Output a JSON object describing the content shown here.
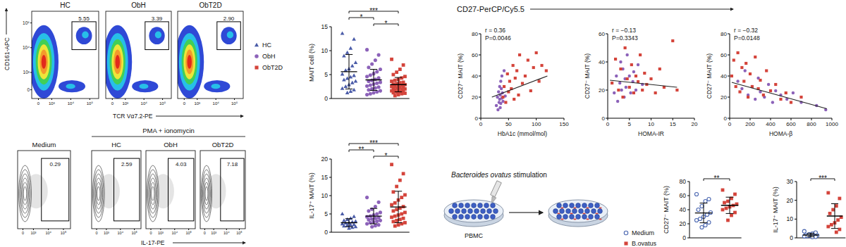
{
  "flow_mait": {
    "y_label": "CD161-APC",
    "x_label": "TCR Vα7.2-PE",
    "ticks": [
      0,
      {
        "value": 1000,
        "label": "10³"
      },
      {
        "value": 10000,
        "label": "10⁴"
      },
      {
        "value": 100000,
        "label": "10⁵"
      }
    ],
    "panels": [
      {
        "title": "HC",
        "gate": "5.55"
      },
      {
        "title": "ObH",
        "gate": "3.39"
      },
      {
        "title": "ObT2D",
        "gate": "2.90"
      }
    ]
  },
  "flow_il17": {
    "stim_label": "PMA + ionomycin",
    "x_label": "IL-17-PE",
    "ticks": [
      0,
      {
        "value": 1000,
        "label": "10³"
      },
      {
        "value": 10000,
        "label": "10⁴"
      },
      {
        "value": 100000,
        "label": "10⁵"
      }
    ],
    "panels": [
      {
        "title": "Medium",
        "gate": "0.29"
      },
      {
        "title": "HC",
        "gate": "2.59"
      },
      {
        "title": "ObH",
        "gate": "4.03"
      },
      {
        "title": "ObT2D",
        "gate": "7.18"
      }
    ]
  },
  "cd27_header": "CD27-PerCP/Cy5.5",
  "schematic": {
    "title_italic": "Bacteroides ovatus",
    "title_rest": "stimulation",
    "cell_label": "PBMC"
  },
  "chart_data": [
    {
      "type": "strip",
      "y_label": "MAIT cell (%)",
      "ylim": [
        0,
        15
      ],
      "yticks": [
        0,
        5,
        10,
        15
      ],
      "legend": "left",
      "series": [
        {
          "name": "HC",
          "color": "#4a5ba8",
          "marker": "triangle",
          "values": [
            13.6,
            12.4,
            10.5,
            9.6,
            8.9,
            7.5,
            6.8,
            6.2,
            5.9,
            5.1,
            4.8,
            4.5,
            4.2,
            3.9,
            3.6,
            3.3,
            2.9,
            2.5,
            2.1,
            1.8,
            1.5,
            1.2
          ],
          "mean": 5.6,
          "sd": 3.6
        },
        {
          "name": "ObH",
          "color": "#8c62b9",
          "marker": "circle",
          "values": [
            10.2,
            9.1,
            8.0,
            7.2,
            6.5,
            6.1,
            5.6,
            5.2,
            4.9,
            4.6,
            4.3,
            4.0,
            3.8,
            3.6,
            3.4,
            3.2,
            3.0,
            2.8,
            2.6,
            2.4,
            2.2,
            2.0,
            1.8,
            1.6,
            1.4,
            1.2,
            1.0,
            0.8
          ],
          "mean": 3.9,
          "sd": 2.2
        },
        {
          "name": "ObT2D",
          "color": "#d4443b",
          "marker": "square",
          "values": [
            8.2,
            7.0,
            6.1,
            5.5,
            5.0,
            4.6,
            4.3,
            4.0,
            3.8,
            3.6,
            3.4,
            3.3,
            3.1,
            3.0,
            2.9,
            2.8,
            2.7,
            2.6,
            2.5,
            2.4,
            2.3,
            2.2,
            2.1,
            2.0,
            1.9,
            1.8,
            1.7,
            1.6,
            1.5,
            1.4,
            1.3,
            1.2,
            1.1,
            1.0,
            0.8,
            0.6
          ],
          "mean": 2.9,
          "sd": 1.5
        }
      ],
      "significance": [
        {
          "between": [
            0,
            2
          ],
          "label": "***"
        },
        {
          "between": [
            0,
            1
          ],
          "label": "*"
        },
        {
          "between": [
            1,
            2
          ],
          "label": "*"
        }
      ]
    },
    {
      "type": "strip",
      "y_label": "IL-17⁺ MAIT (%)",
      "ylim": [
        0,
        20
      ],
      "yticks": [
        0,
        5,
        10,
        15,
        20
      ],
      "series": [
        {
          "color": "#4a5ba8",
          "marker": "triangle",
          "values": [
            5.0,
            4.3,
            3.8,
            3.5,
            3.2,
            3.0,
            2.8,
            2.6,
            2.5,
            2.3,
            2.1,
            2.0,
            1.9,
            1.7,
            1.5,
            1.3,
            1.1
          ],
          "mean": 2.6,
          "sd": 1.1
        },
        {
          "color": "#8c62b9",
          "marker": "circle",
          "values": [
            9.5,
            8.2,
            7.0,
            6.3,
            5.8,
            5.4,
            5.0,
            4.7,
            4.4,
            4.2,
            4.0,
            3.8,
            3.6,
            3.4,
            3.2,
            3.0,
            2.8,
            2.6,
            2.3,
            2.0,
            1.8,
            1.5
          ],
          "mean": 4.4,
          "sd": 2.1
        },
        {
          "color": "#d4443b",
          "marker": "square",
          "values": [
            18.5,
            16.0,
            14.2,
            12.5,
            11.0,
            10.2,
            9.5,
            8.8,
            8.0,
            7.5,
            7.0,
            6.6,
            6.2,
            5.8,
            5.4,
            5.0,
            4.7,
            4.4,
            4.1,
            3.8,
            3.5,
            3.2,
            2.9,
            2.6,
            2.3,
            2.0,
            1.7
          ],
          "mean": 6.9,
          "sd": 4.3
        }
      ],
      "significance": [
        {
          "between": [
            0,
            2
          ],
          "label": "***"
        },
        {
          "between": [
            0,
            1
          ],
          "label": "**"
        },
        {
          "between": [
            1,
            2
          ],
          "label": "*"
        }
      ]
    },
    {
      "type": "scatter",
      "x_label": "HbA1c (mmol/mol)",
      "y_label": "CD27⁻ MAIT (%)",
      "xlim": [
        0,
        150
      ],
      "xticks": [
        0,
        50,
        100,
        150
      ],
      "ylim": [
        0,
        80
      ],
      "yticks": [
        0,
        20,
        40,
        60,
        80
      ],
      "annotations": [
        "r = 0.36",
        "P=0.0046"
      ],
      "series": [
        {
          "color": "#8c62b9",
          "marker": "circle",
          "x": [
            28,
            30,
            31,
            32,
            33,
            34,
            34,
            35,
            35,
            36,
            36,
            37,
            38,
            38,
            39,
            40,
            42,
            44
          ],
          "values": [
            12,
            20,
            8,
            25,
            15,
            30,
            18,
            10,
            22,
            35,
            14,
            28,
            19,
            40,
            24,
            16,
            45,
            21
          ]
        },
        {
          "color": "#d4443b",
          "marker": "square",
          "x": [
            40,
            42,
            45,
            48,
            50,
            52,
            55,
            58,
            60,
            62,
            65,
            68,
            70,
            75,
            80,
            85,
            90,
            95,
            100,
            105,
            110,
            118
          ],
          "values": [
            20,
            30,
            15,
            42,
            25,
            35,
            28,
            50,
            18,
            38,
            45,
            22,
            60,
            33,
            40,
            55,
            26,
            48,
            62,
            35,
            50,
            45
          ]
        }
      ],
      "fit": {
        "x": [
          20,
          120
        ],
        "values": [
          20,
          40
        ]
      }
    },
    {
      "type": "scatter",
      "x_label": "HOMA-IR",
      "y_label": "CD27⁻ MAIT (%)",
      "xlim": [
        0,
        20
      ],
      "xticks": [
        0,
        5,
        10,
        15,
        20
      ],
      "ylim": [
        0,
        60
      ],
      "yticks": [
        0,
        20,
        40,
        60
      ],
      "annotations": [
        "r = −0.13",
        "P=0.3343"
      ],
      "series": [
        {
          "color": "#8c62b9",
          "marker": "circle",
          "x": [
            1.5,
            2,
            2.3,
            2.8,
            3,
            3.2,
            3.5,
            3.8,
            4,
            4.2,
            4.5,
            5,
            5.3,
            5.8,
            6,
            6.5,
            7,
            8
          ],
          "values": [
            18,
            30,
            12,
            25,
            40,
            20,
            35,
            15,
            28,
            22,
            45,
            30,
            18,
            26,
            33,
            20,
            38,
            24
          ]
        },
        {
          "color": "#d4443b",
          "marker": "square",
          "x": [
            1,
            1.8,
            2.5,
            3,
            3.5,
            4,
            4.5,
            5,
            5.5,
            6,
            6.5,
            7,
            7.5,
            8,
            8.5,
            9,
            10,
            11,
            12,
            13,
            15,
            16
          ],
          "values": [
            25,
            42,
            20,
            35,
            15,
            50,
            28,
            22,
            38,
            18,
            30,
            26,
            45,
            20,
            32,
            24,
            28,
            18,
            35,
            22,
            55,
            20
          ]
        }
      ],
      "fit": {
        "x": [
          0.5,
          16
        ],
        "values": [
          27,
          22
        ]
      }
    },
    {
      "type": "scatter",
      "x_label": "HOMA-β",
      "y_label": "CD27⁻ MAIT (%)",
      "xlim": [
        0,
        1000
      ],
      "xticks": [
        0,
        200,
        400,
        600,
        800,
        1000
      ],
      "ylim": [
        0,
        80
      ],
      "yticks": [
        0,
        20,
        40,
        60,
        80
      ],
      "annotations": [
        "r = −0.32",
        "P=0.0148"
      ],
      "series": [
        {
          "color": "#8c62b9",
          "marker": "circle",
          "x": [
            80,
            120,
            150,
            180,
            220,
            250,
            280,
            300,
            340,
            380,
            420,
            450,
            500,
            560,
            620,
            700,
            850,
            940
          ],
          "values": [
            35,
            28,
            45,
            22,
            30,
            18,
            38,
            25,
            20,
            32,
            15,
            26,
            22,
            18,
            24,
            15,
            12,
            8
          ]
        },
        {
          "color": "#d4443b",
          "marker": "square",
          "x": [
            20,
            40,
            60,
            80,
            100,
            120,
            140,
            160,
            180,
            200,
            220,
            250,
            280,
            300,
            330,
            360,
            400,
            450,
            500,
            550,
            600,
            700
          ],
          "values": [
            40,
            55,
            30,
            62,
            25,
            48,
            35,
            52,
            20,
            42,
            30,
            58,
            28,
            36,
            22,
            45,
            26,
            32,
            18,
            24,
            15,
            20
          ]
        }
      ],
      "fit": {
        "x": [
          20,
          950
        ],
        "values": [
          34,
          9
        ]
      }
    },
    {
      "type": "strip",
      "y_label": "CD27⁻ MAIT (%)",
      "ylim": [
        0,
        80
      ],
      "yticks": [
        0,
        20,
        40,
        60,
        80
      ],
      "legend": "left",
      "series": [
        {
          "name": "Medium",
          "color": "#4a66b0",
          "marker": "open-circle",
          "values": [
            62,
            55,
            52,
            45,
            40,
            36,
            33,
            30,
            27,
            25,
            22,
            18,
            15
          ],
          "mean": 35.4,
          "sd": 14
        },
        {
          "name": "B.ovatus",
          "color": "#d4443b",
          "marker": "square",
          "values": [
            68,
            62,
            56,
            52,
            50,
            48,
            46,
            44,
            42,
            40,
            36,
            32,
            25
          ],
          "mean": 46.2,
          "sd": 11.6
        }
      ],
      "significance": [
        {
          "between": [
            0,
            1
          ],
          "label": "**"
        }
      ]
    },
    {
      "type": "strip",
      "y_label": "IL-17⁺ MAIT (%)",
      "ylim": [
        0,
        30
      ],
      "yticks": [
        0,
        10,
        20,
        30
      ],
      "series": [
        {
          "color": "#4a66b0",
          "marker": "open-circle",
          "values": [
            3.5,
            2.8,
            2.2,
            1.8,
            1.5,
            1.3,
            1.1,
            1.0,
            0.9,
            0.8,
            0.6,
            0.5
          ],
          "mean": 1.5,
          "sd": 0.9
        },
        {
          "color": "#d4443b",
          "marker": "square",
          "values": [
            24,
            21,
            17,
            15,
            13,
            11,
            9.5,
            8,
            7,
            6,
            4.5,
            3
          ],
          "mean": 11.6,
          "sd": 6.6
        }
      ],
      "significance": [
        {
          "between": [
            0,
            1
          ],
          "label": "***"
        }
      ]
    }
  ]
}
